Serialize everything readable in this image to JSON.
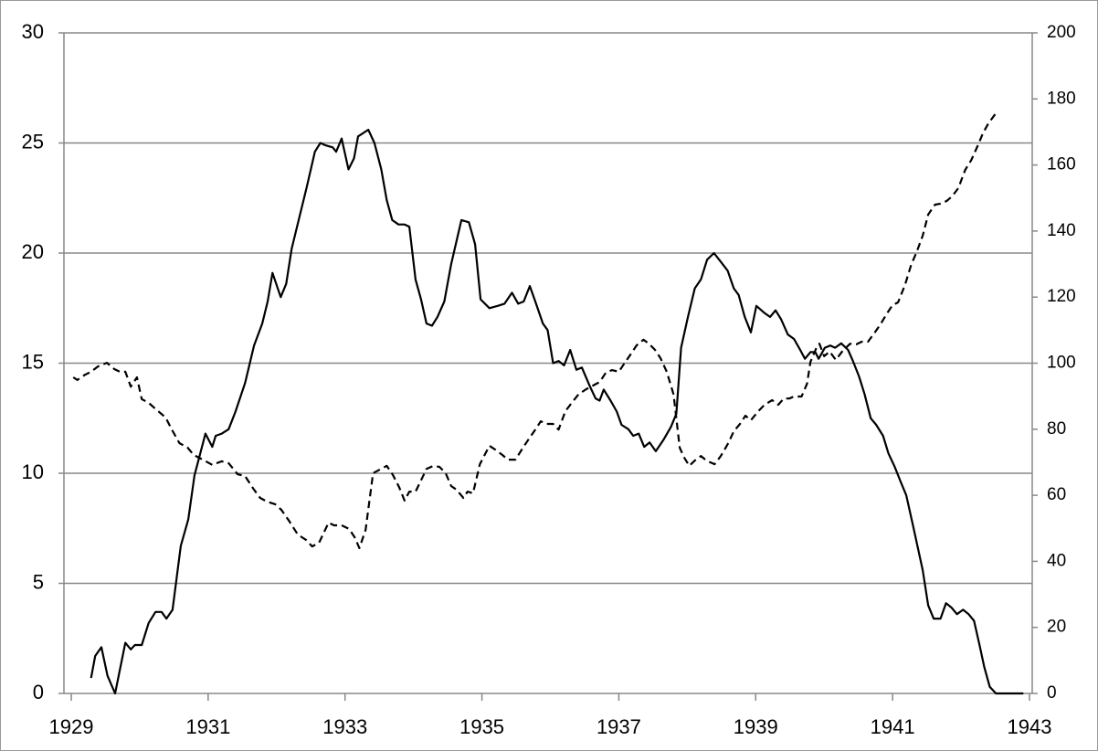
{
  "chart_data": {
    "type": "line",
    "xlim": [
      1929,
      1943
    ],
    "xticks": [
      1929,
      1931,
      1933,
      1935,
      1937,
      1939,
      1941,
      1943
    ],
    "ylim": [
      0,
      30
    ],
    "yticks": [
      0,
      5,
      10,
      15,
      20,
      25,
      30
    ],
    "y2lim": [
      0,
      200
    ],
    "y2ticks": [
      0,
      20,
      40,
      60,
      80,
      100,
      120,
      140,
      160,
      180,
      200
    ],
    "grid": true,
    "series": [
      {
        "color": "#000000",
        "style": "solid",
        "x": [
          1929.29,
          1929.35,
          1929.44,
          1929.53,
          1929.64,
          1929.79,
          1929.87,
          1929.93,
          1930.03,
          1930.13,
          1930.23,
          1930.32,
          1930.39,
          1930.48,
          1930.6,
          1930.71,
          1930.8,
          1930.96,
          1931.06,
          1931.11,
          1931.2,
          1931.3,
          1931.4,
          1931.54,
          1931.67,
          1931.79,
          1931.87,
          1931.94,
          1932.06,
          1932.14,
          1932.22,
          1932.44,
          1932.56,
          1932.64,
          1932.71,
          1932.82,
          1932.87,
          1932.95,
          1933.05,
          1933.13,
          1933.19,
          1933.34,
          1933.43,
          1933.53,
          1933.61,
          1933.69,
          1933.78,
          1933.87,
          1933.94,
          1934.03,
          1934.11,
          1934.19,
          1934.27,
          1934.35,
          1934.45,
          1934.55,
          1934.7,
          1934.81,
          1934.9,
          1934.98,
          1935.11,
          1935.23,
          1935.33,
          1935.44,
          1935.53,
          1935.61,
          1935.7,
          1935.78,
          1935.89,
          1935.96,
          1936.04,
          1936.12,
          1936.2,
          1936.29,
          1936.38,
          1936.46,
          1936.57,
          1936.66,
          1936.72,
          1936.78,
          1936.88,
          1936.97,
          1937.04,
          1937.14,
          1937.21,
          1937.29,
          1937.37,
          1937.45,
          1937.54,
          1937.65,
          1937.76,
          1937.84,
          1937.91,
          1938.01,
          1938.11,
          1938.2,
          1938.29,
          1938.39,
          1938.49,
          1938.59,
          1938.68,
          1938.75,
          1938.84,
          1938.93,
          1939.01,
          1939.12,
          1939.21,
          1939.29,
          1939.37,
          1939.47,
          1939.56,
          1939.65,
          1939.72,
          1939.8,
          1939.87,
          1939.92,
          1940.01,
          1940.09,
          1940.16,
          1940.25,
          1940.35,
          1940.42,
          1940.51,
          1940.59,
          1940.68,
          1940.76,
          1940.86,
          1940.94,
          1941.03,
          1941.12,
          1941.2,
          1941.3,
          1941.44,
          1941.52,
          1941.6,
          1941.7,
          1941.78,
          1941.86,
          1941.94,
          1942.03,
          1942.11,
          1942.19,
          1942.27,
          1942.34,
          1942.42,
          1942.51,
          1942.91
        ],
        "values": [
          0.7,
          1.7,
          2.1,
          0.8,
          0,
          2.3,
          2.0,
          2.2,
          2.2,
          3.2,
          3.7,
          3.7,
          3.4,
          3.8,
          6.7,
          7.9,
          9.9,
          11.8,
          11.2,
          11.7,
          11.8,
          12.0,
          12.8,
          14.1,
          15.8,
          16.8,
          17.8,
          19.1,
          18.0,
          18.6,
          20.2,
          23.0,
          24.6,
          25.0,
          24.9,
          24.8,
          24.6,
          25.2,
          23.8,
          24.3,
          25.3,
          25.6,
          25.0,
          23.8,
          22.4,
          21.5,
          21.3,
          21.3,
          21.2,
          18.8,
          17.9,
          16.8,
          16.7,
          17.1,
          17.8,
          19.5,
          21.5,
          21.4,
          20.4,
          17.9,
          17.5,
          17.6,
          17.7,
          18.2,
          17.7,
          17.8,
          18.5,
          17.8,
          16.8,
          16.5,
          15.0,
          15.1,
          14.9,
          15.6,
          14.7,
          14.8,
          14.0,
          13.4,
          13.3,
          13.8,
          13.3,
          12.8,
          12.2,
          12.0,
          11.7,
          11.8,
          11.2,
          11.4,
          11.0,
          11.5,
          12.1,
          12.7,
          15.7,
          17.1,
          18.4,
          18.8,
          19.7,
          20.0,
          19.6,
          19.2,
          18.4,
          18.1,
          17.1,
          16.4,
          17.6,
          17.3,
          17.1,
          17.4,
          17.0,
          16.3,
          16.1,
          15.6,
          15.2,
          15.5,
          15.5,
          15.2,
          15.7,
          15.8,
          15.7,
          15.9,
          15.6,
          15.1,
          14.4,
          13.6,
          12.5,
          12.2,
          11.7,
          10.9,
          10.3,
          9.6,
          9.0,
          7.6,
          5.6,
          4.0,
          3.4,
          3.4,
          4.1,
          3.9,
          3.6,
          3.8,
          3.6,
          3.3,
          2.2,
          1.2,
          0.3,
          0,
          0
        ]
      },
      {
        "color": "#000000",
        "style": "dashed",
        "axis": "y2",
        "x": [
          1929.03,
          1929.09,
          1929.2,
          1929.29,
          1929.39,
          1929.52,
          1929.63,
          1929.71,
          1929.79,
          1929.87,
          1929.96,
          1930.03,
          1930.13,
          1930.25,
          1930.38,
          1930.47,
          1930.58,
          1930.7,
          1930.79,
          1930.92,
          1931.06,
          1931.2,
          1931.3,
          1931.43,
          1931.54,
          1931.66,
          1931.76,
          1931.86,
          1931.98,
          1932.07,
          1932.18,
          1932.31,
          1932.43,
          1932.52,
          1932.62,
          1932.76,
          1932.84,
          1932.95,
          1933.06,
          1933.14,
          1933.21,
          1933.3,
          1933.41,
          1933.51,
          1933.61,
          1933.7,
          1933.79,
          1933.87,
          1933.94,
          1934.03,
          1934.11,
          1934.19,
          1934.29,
          1934.38,
          1934.47,
          1934.55,
          1934.63,
          1934.73,
          1934.79,
          1934.87,
          1934.97,
          1935.11,
          1935.19,
          1935.3,
          1935.38,
          1935.49,
          1935.6,
          1935.69,
          1935.78,
          1935.86,
          1935.94,
          1936.04,
          1936.12,
          1936.22,
          1936.32,
          1936.41,
          1936.52,
          1936.62,
          1936.72,
          1936.81,
          1936.9,
          1937.0,
          1937.08,
          1937.17,
          1937.26,
          1937.36,
          1937.44,
          1937.53,
          1937.61,
          1937.7,
          1937.8,
          1937.89,
          1937.95,
          1938.03,
          1938.11,
          1938.2,
          1938.28,
          1938.4,
          1938.49,
          1938.6,
          1938.68,
          1938.77,
          1938.85,
          1938.93,
          1939.04,
          1939.13,
          1939.24,
          1939.33,
          1939.41,
          1939.49,
          1939.56,
          1939.67,
          1939.75,
          1939.8,
          1939.88,
          1939.93,
          1940.0,
          1940.08,
          1940.17,
          1940.27,
          1940.38,
          1940.47,
          1940.55,
          1940.64,
          1940.74,
          1940.83,
          1940.91,
          1941.0,
          1941.08,
          1941.18,
          1941.27,
          1941.35,
          1941.44,
          1941.52,
          1941.62,
          1941.7,
          1941.79,
          1941.87,
          1941.96,
          1942.06,
          1942.15,
          1942.24,
          1942.32,
          1942.4,
          1942.5
        ],
        "values": [
          95.7,
          94.9,
          96.5,
          97.4,
          99.0,
          100.1,
          98.2,
          97.4,
          97.4,
          92.9,
          95.7,
          89.1,
          88.0,
          85.8,
          83.5,
          79.9,
          75.8,
          74.4,
          72.2,
          70.8,
          69.2,
          70.3,
          69.7,
          66.4,
          65.8,
          62.0,
          59.2,
          58.1,
          57.3,
          55.6,
          52.3,
          48.1,
          46.5,
          44.5,
          45.6,
          51.7,
          50.9,
          50.9,
          49.8,
          47.3,
          44.0,
          49.5,
          66.7,
          67.8,
          68.9,
          66.1,
          62.5,
          58.4,
          61.1,
          61.1,
          64.5,
          68.0,
          68.9,
          68.6,
          66.7,
          62.8,
          61.7,
          59.2,
          61.1,
          60.6,
          69.4,
          75.0,
          73.9,
          72.2,
          70.8,
          70.8,
          74.4,
          77.2,
          79.9,
          82.4,
          81.6,
          81.6,
          79.9,
          85.5,
          88.2,
          90.5,
          92.1,
          93.2,
          94.3,
          97.1,
          97.9,
          97.4,
          99.9,
          102.6,
          105.4,
          107.1,
          105.9,
          104.0,
          101.5,
          97.4,
          90.5,
          74.4,
          71.6,
          68.9,
          70.5,
          71.9,
          70.5,
          69.4,
          71.9,
          75.8,
          79.4,
          81.6,
          84.1,
          82.7,
          85.5,
          87.4,
          88.8,
          87.4,
          89.3,
          89.3,
          89.9,
          89.9,
          93.8,
          100.4,
          104.3,
          105.9,
          102.1,
          103.5,
          101.0,
          103.7,
          105.9,
          105.7,
          106.5,
          106.5,
          109.3,
          112.0,
          114.8,
          117.6,
          118.4,
          123.6,
          129.7,
          133.6,
          138.6,
          145.0,
          148.0,
          148.3,
          149.1,
          150.5,
          153.0,
          158.5,
          161.5,
          165.7,
          169.6,
          172.6,
          175.4
        ]
      }
    ]
  }
}
